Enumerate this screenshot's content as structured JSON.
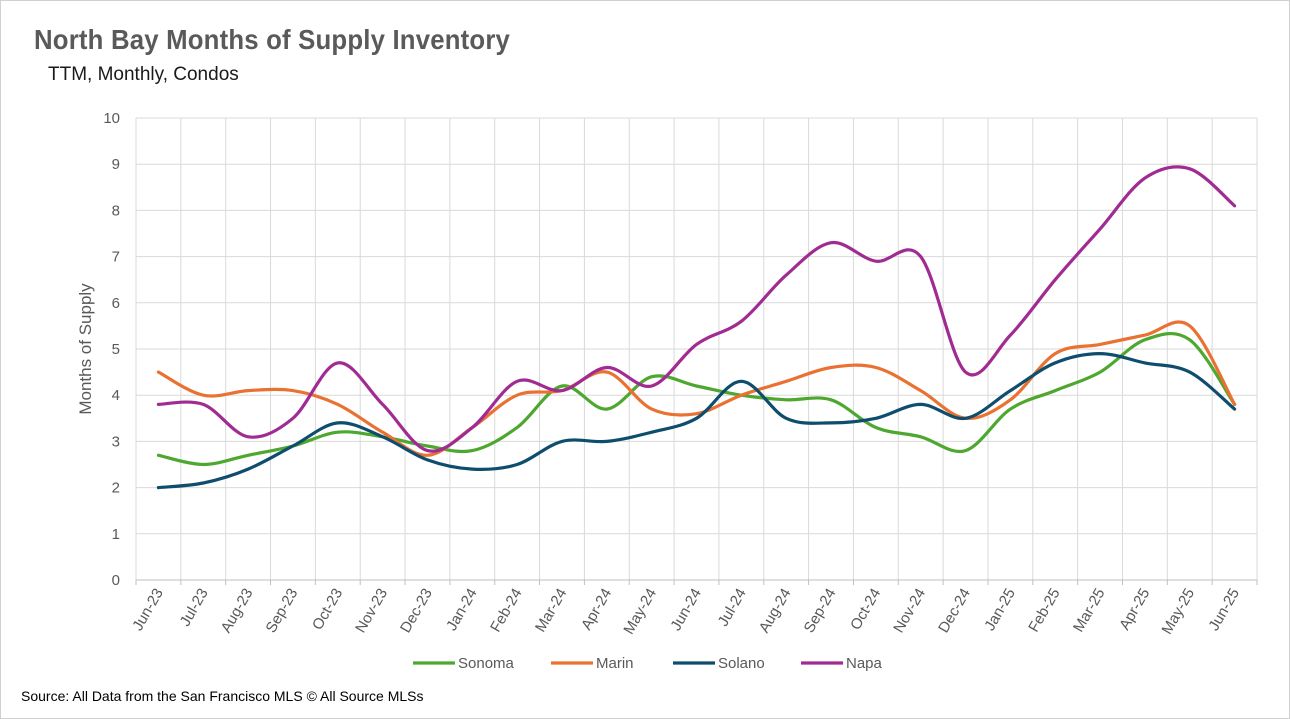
{
  "chart_data": {
    "type": "line",
    "title": "North Bay Months of Supply Inventory",
    "subtitle": "TTM, Monthly, Condos",
    "ylabel": "Months of Supply",
    "xlabel": "",
    "ylim": [
      0,
      10
    ],
    "yticks": [
      "0",
      "1",
      "2",
      "3",
      "4",
      "5",
      "6",
      "7",
      "8",
      "9",
      "10"
    ],
    "grid": true,
    "legend_position": "bottom",
    "categories": [
      "Jun-23",
      "Jul-23",
      "Aug-23",
      "Sep-23",
      "Oct-23",
      "Nov-23",
      "Dec-23",
      "Jan-24",
      "Feb-24",
      "Mar-24",
      "Apr-24",
      "May-24",
      "Jun-24",
      "Jul-24",
      "Aug-24",
      "Sep-24",
      "Oct-24",
      "Nov-24",
      "Dec-24",
      "Jan-25",
      "Feb-25",
      "Mar-25",
      "Apr-25",
      "May-25",
      "Jun-25"
    ],
    "series": [
      {
        "name": "Sonoma",
        "color": "#4ea72e",
        "values": [
          2.7,
          2.5,
          2.7,
          2.9,
          3.2,
          3.1,
          2.9,
          2.8,
          3.3,
          4.2,
          3.7,
          4.4,
          4.2,
          4.0,
          3.9,
          3.9,
          3.3,
          3.1,
          2.8,
          3.7,
          4.1,
          4.5,
          5.2,
          5.2,
          3.8
        ]
      },
      {
        "name": "Marin",
        "color": "#e97132",
        "values": [
          4.5,
          4.0,
          4.1,
          4.1,
          3.8,
          3.2,
          2.7,
          3.3,
          4.0,
          4.1,
          4.5,
          3.7,
          3.6,
          4.0,
          4.3,
          4.6,
          4.6,
          4.1,
          3.5,
          3.9,
          4.9,
          5.1,
          5.3,
          5.5,
          3.8
        ]
      },
      {
        "name": "Solano",
        "color": "#0f4d6e",
        "values": [
          2.0,
          2.1,
          2.4,
          2.9,
          3.4,
          3.1,
          2.6,
          2.4,
          2.5,
          3.0,
          3.0,
          3.2,
          3.5,
          4.3,
          3.5,
          3.4,
          3.5,
          3.8,
          3.5,
          4.1,
          4.7,
          4.9,
          4.7,
          4.5,
          3.7
        ]
      },
      {
        "name": "Napa",
        "color": "#a02b93",
        "values": [
          3.8,
          3.8,
          3.1,
          3.5,
          4.7,
          3.8,
          2.8,
          3.3,
          4.3,
          4.1,
          4.6,
          4.2,
          5.1,
          5.6,
          6.6,
          7.3,
          6.9,
          7.0,
          4.5,
          5.3,
          6.5,
          7.6,
          8.7,
          8.9,
          8.1
        ]
      }
    ],
    "source": "Source: All Data from the San Francisco MLS © All Source MLSs"
  }
}
